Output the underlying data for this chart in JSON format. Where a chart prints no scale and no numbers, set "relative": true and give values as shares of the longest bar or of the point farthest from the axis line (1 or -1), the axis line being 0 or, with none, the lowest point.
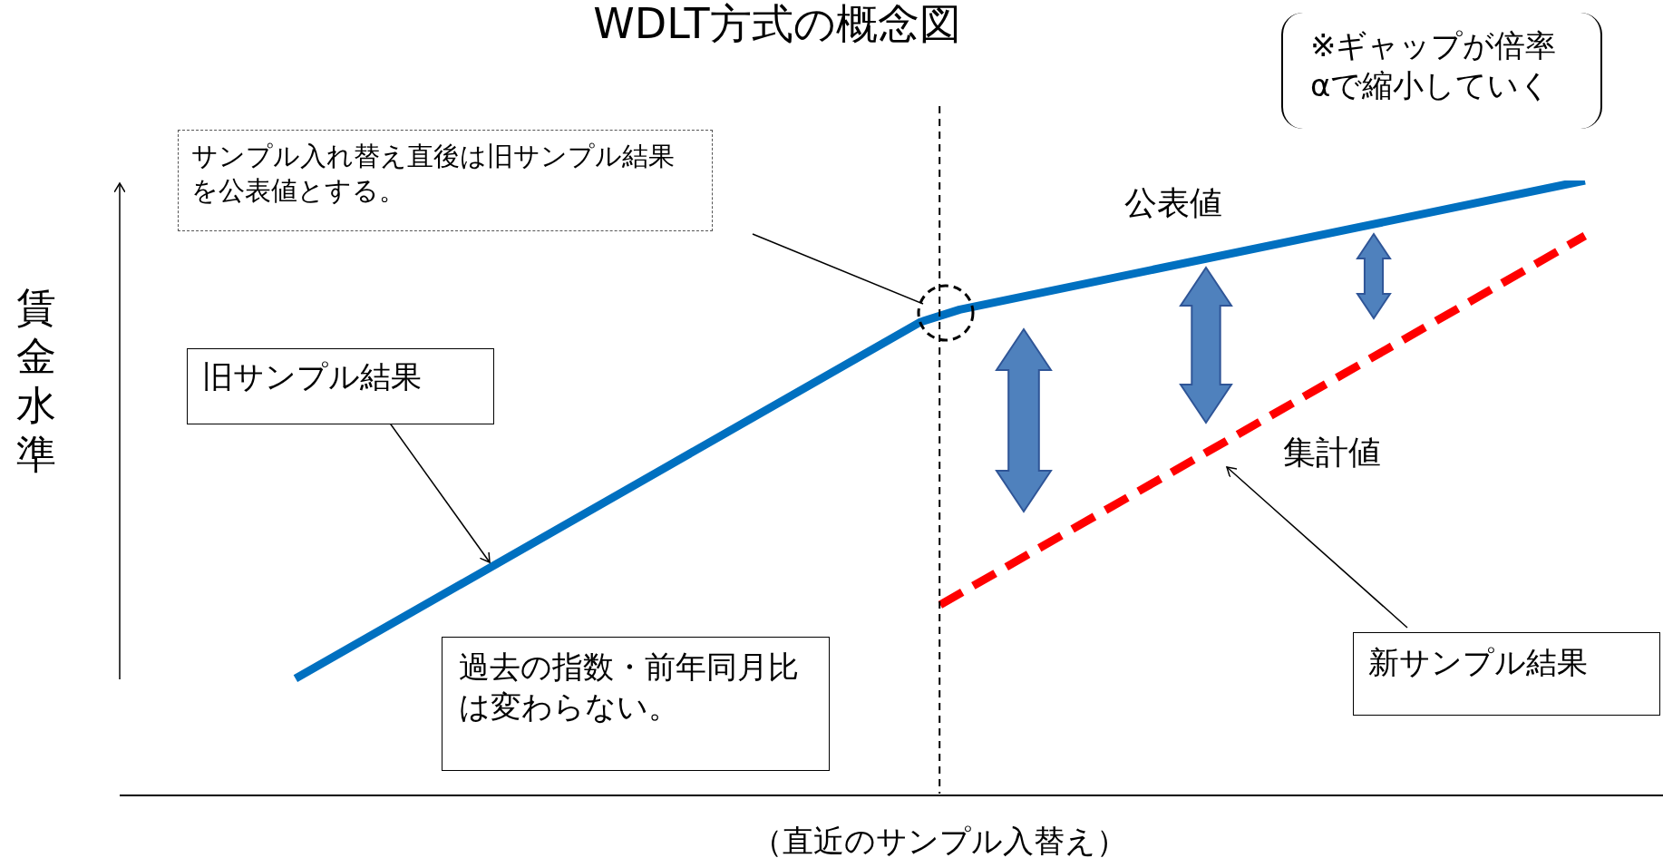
{
  "chart_data": {
    "type": "line",
    "title": "WDLT方式の概念図",
    "ylabel": "賃金水準",
    "relative": true,
    "marker": "none",
    "categories": [
      null,
      null,
      null,
      null,
      null,
      null,
      null,
      null,
      null,
      null,
      null,
      null,
      null,
      null,
      null,
      null,
      null,
      null,
      null,
      null,
      null,
      null,
      null,
      null,
      null,
      null,
      null,
      null,
      null,
      null,
      null,
      null,
      null,
      null,
      null,
      null,
      null,
      null,
      null,
      null,
      null,
      null,
      null,
      null,
      null,
      null,
      null,
      null,
      null,
      null,
      null,
      null,
      null,
      null,
      null,
      null,
      null,
      null,
      null,
      null,
      null,
      null,
      null,
      null,
      null,
      null,
      null,
      null,
      null,
      null,
      null,
      null,
      null,
      null,
      null,
      null,
      null,
      null,
      null,
      null
    ],
    "series": [
      {
        "name": "公表値",
        "color": "#0070c0",
        "line_style": "solid",
        "values": [
          null,
          null,
          null,
          null,
          null,
          null,
          null,
          null,
          null,
          0.19,
          null,
          null,
          null,
          null,
          null,
          null,
          null,
          null,
          null,
          null,
          null,
          null,
          null,
          null,
          null,
          null,
          null,
          null,
          null,
          null,
          null,
          null,
          null,
          null,
          null,
          null,
          null,
          null,
          null,
          null,
          null,
          0.77,
          null,
          0.79,
          null,
          null,
          null,
          null,
          null,
          null,
          null,
          null,
          null,
          null,
          null,
          null,
          null,
          null,
          null,
          null,
          null,
          null,
          null,
          null,
          null,
          null,
          null,
          null,
          null,
          null,
          null,
          null,
          null,
          null,
          null,
          1,
          null,
          null,
          null,
          null
        ]
      },
      {
        "name": "集計値",
        "color": "#ff0000",
        "line_style": "dashed",
        "values": [
          null,
          null,
          null,
          null,
          null,
          null,
          null,
          null,
          null,
          null,
          null,
          null,
          null,
          null,
          null,
          null,
          null,
          null,
          null,
          null,
          null,
          null,
          null,
          null,
          null,
          null,
          null,
          null,
          null,
          null,
          null,
          null,
          null,
          null,
          null,
          null,
          null,
          null,
          null,
          null,
          null,
          null,
          0.31,
          null,
          null,
          null,
          null,
          null,
          null,
          null,
          null,
          null,
          null,
          null,
          null,
          null,
          null,
          null,
          null,
          null,
          null,
          null,
          null,
          null,
          null,
          null,
          null,
          null,
          null,
          null,
          null,
          null,
          null,
          null,
          null,
          0.91,
          null,
          null,
          null,
          null
        ]
      }
    ],
    "xlabel": "（直近のサンプル入替え）",
    "annotations": [
      "サンプル入れ替え直後は旧サンプル結果を公表値とする。",
      "旧サンプル結果",
      "過去の指数・前年同月比は変わらない。",
      "新サンプル結果",
      "※ギャップが倍率αで縮小していく"
    ]
  }
}
